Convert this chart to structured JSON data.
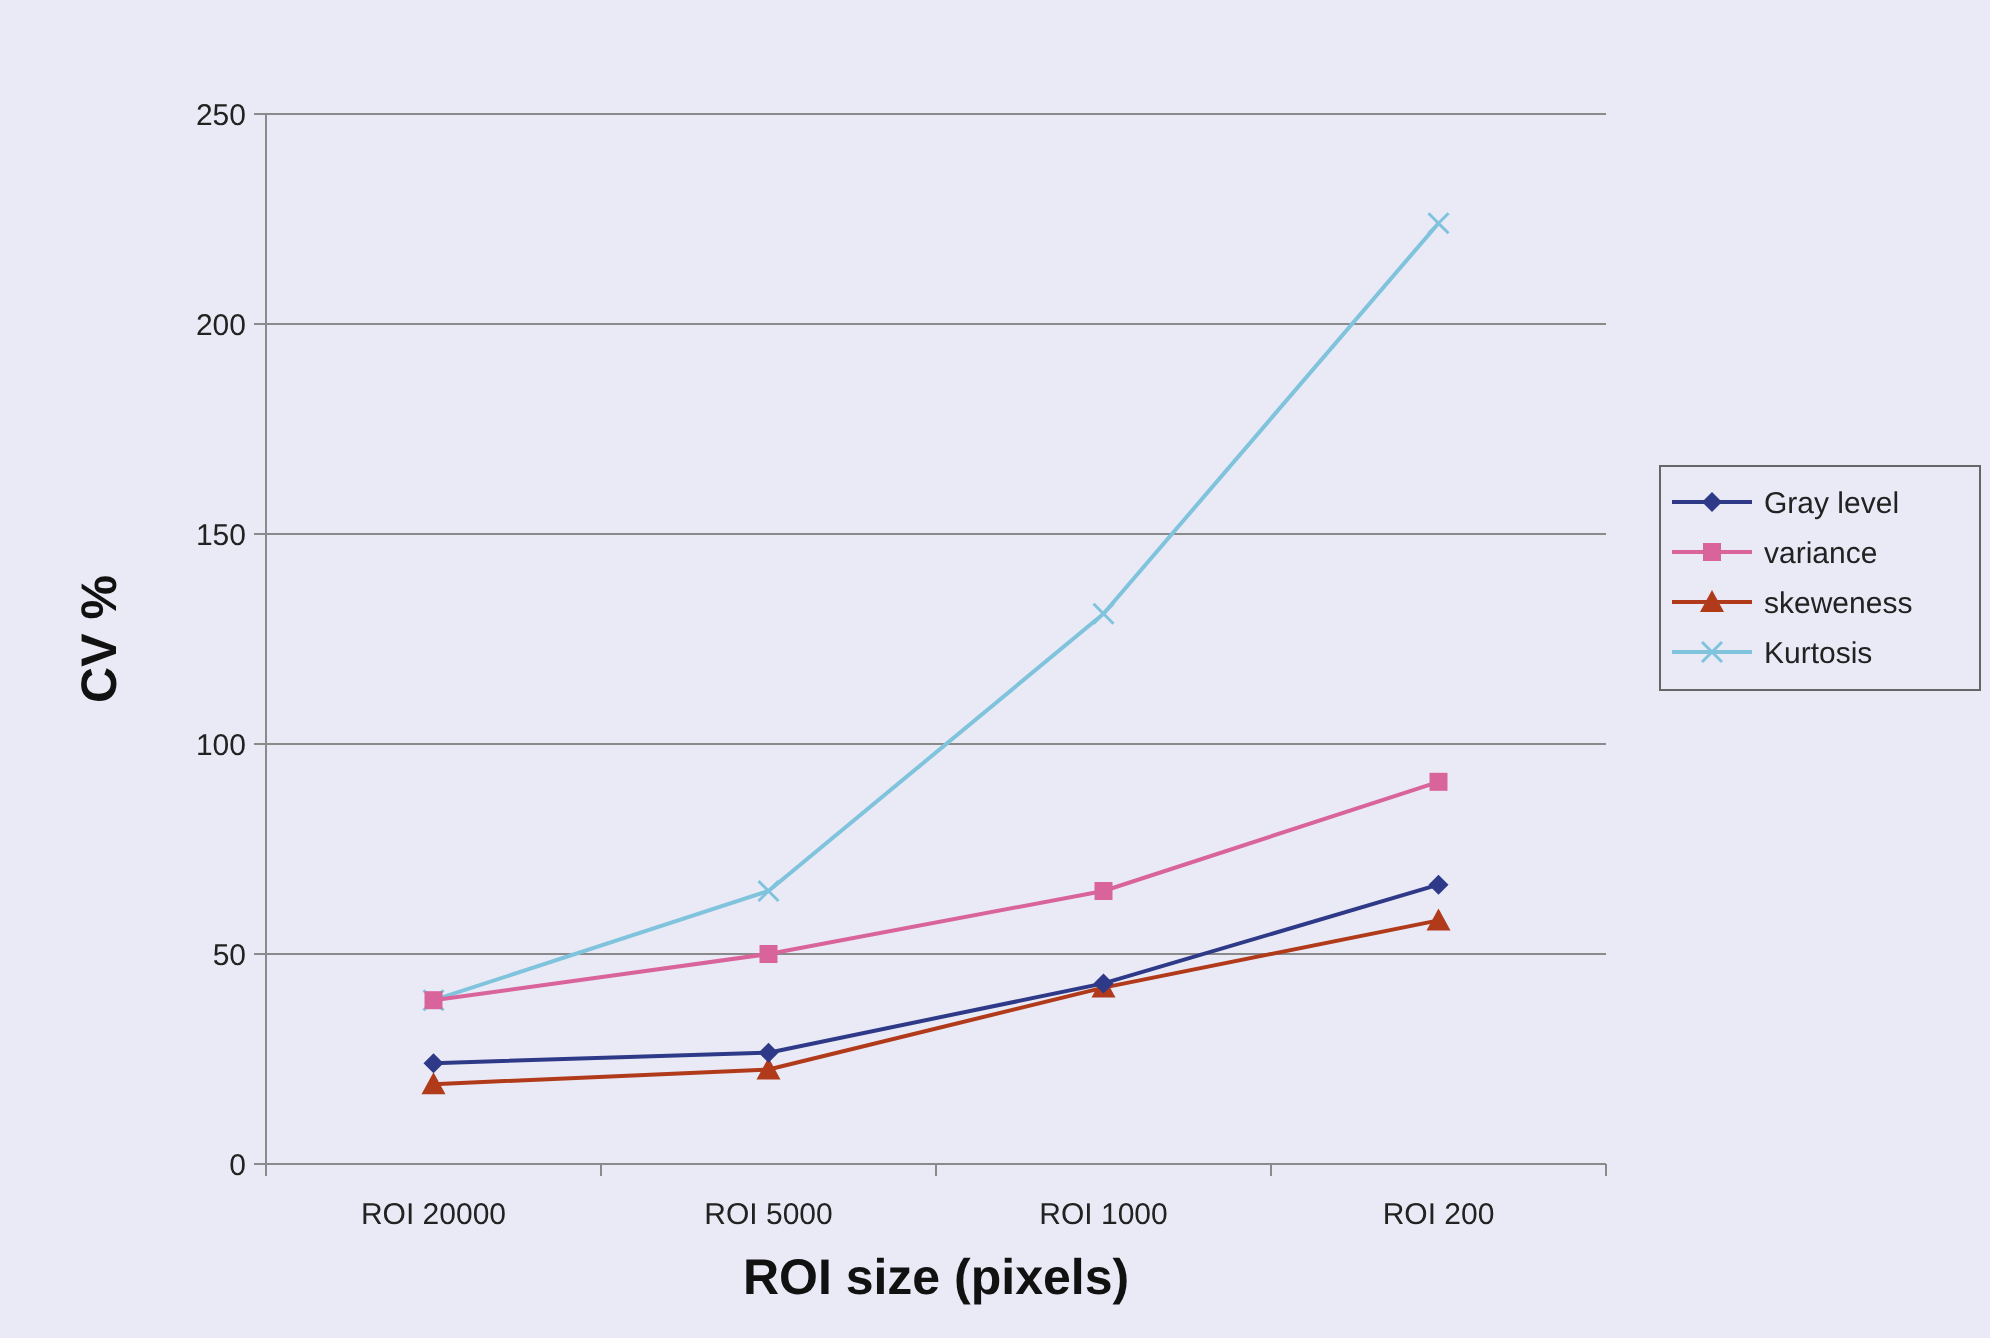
{
  "chart_data": {
    "type": "line",
    "xlabel": "ROI size (pixels)",
    "ylabel": "CV %",
    "categories": [
      "ROI 20000",
      "ROI 5000",
      "ROI 1000",
      "ROI 200"
    ],
    "series": [
      {
        "name": "Gray level",
        "color": "#2e3a87",
        "values": [
          24,
          26.5,
          43,
          66.5
        ],
        "marker": "diamond"
      },
      {
        "name": "variance",
        "color": "#d9649b",
        "values": [
          39,
          50,
          65,
          91
        ],
        "marker": "square"
      },
      {
        "name": "skeweness",
        "color": "#b03a1a",
        "values": [
          19,
          22.5,
          42,
          58
        ],
        "marker": "triangle"
      },
      {
        "name": "Kurtosis",
        "color": "#7fc3dc",
        "values": [
          39,
          65,
          131,
          224
        ],
        "marker": "cross"
      }
    ],
    "ylim": [
      0,
      250
    ],
    "yticks": [
      0,
      50,
      100,
      150,
      200,
      250
    ],
    "grid": "y",
    "legend": "right",
    "line_style": "solid"
  }
}
